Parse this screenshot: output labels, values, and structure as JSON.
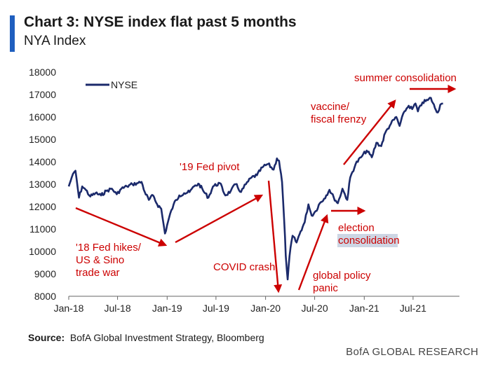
{
  "header": {
    "title": "Chart 3: NYSE index flat past 5 months",
    "subtitle": "NYA Index"
  },
  "footer": {
    "source_label": "Source:",
    "source_text": "BofA Global Investment Strategy, Bloomberg",
    "brand": "BofA GLOBAL RESEARCH"
  },
  "colors": {
    "accent": "#1f5fbf",
    "line": "#1b2a6b",
    "annotation": "#cc0000",
    "highlight": "#cdd6e4"
  },
  "chart_data": {
    "type": "line",
    "title": "Chart 3: NYSE index flat past 5 months",
    "subtitle": "NYA Index",
    "legend": {
      "entries": [
        "NYSE"
      ],
      "placement": "top-left"
    },
    "ylim": [
      8000,
      18000
    ],
    "yticks": [
      "18000",
      "17000",
      "16000",
      "15000",
      "14000",
      "13000",
      "12000",
      "11000",
      "10000",
      "9000",
      "8000"
    ],
    "xticks": [
      {
        "label": "Jan-18",
        "date": "2018-01-01"
      },
      {
        "label": "Jul-18",
        "date": "2018-07-01"
      },
      {
        "label": "Jan-19",
        "date": "2019-01-01"
      },
      {
        "label": "Jul-19",
        "date": "2019-07-01"
      },
      {
        "label": "Jan-20",
        "date": "2020-01-01"
      },
      {
        "label": "Jul-20",
        "date": "2020-07-01"
      },
      {
        "label": "Jan-21",
        "date": "2021-01-01"
      },
      {
        "label": "Jul-21",
        "date": "2021-07-01"
      }
    ],
    "xlim": [
      "2018-01-01",
      "2021-12-20"
    ],
    "grid": false,
    "series": [
      {
        "name": "NYSE",
        "points": [
          [
            "2018-01-01",
            12900
          ],
          [
            "2018-01-12",
            13300
          ],
          [
            "2018-01-26",
            13600
          ],
          [
            "2018-02-08",
            12400
          ],
          [
            "2018-02-20",
            12900
          ],
          [
            "2018-03-05",
            12750
          ],
          [
            "2018-03-22",
            12450
          ],
          [
            "2018-04-10",
            12600
          ],
          [
            "2018-05-01",
            12500
          ],
          [
            "2018-05-20",
            12700
          ],
          [
            "2018-06-10",
            12800
          ],
          [
            "2018-06-28",
            12550
          ],
          [
            "2018-07-15",
            12800
          ],
          [
            "2018-08-05",
            12900
          ],
          [
            "2018-08-25",
            13000
          ],
          [
            "2018-09-15",
            13050
          ],
          [
            "2018-09-28",
            13100
          ],
          [
            "2018-10-10",
            12650
          ],
          [
            "2018-10-25",
            12300
          ],
          [
            "2018-11-10",
            12500
          ],
          [
            "2018-11-25",
            12100
          ],
          [
            "2018-12-10",
            11900
          ],
          [
            "2018-12-24",
            10800
          ],
          [
            "2019-01-08",
            11500
          ],
          [
            "2019-01-25",
            12100
          ],
          [
            "2019-02-15",
            12500
          ],
          [
            "2019-03-05",
            12600
          ],
          [
            "2019-03-25",
            12650
          ],
          [
            "2019-04-15",
            12950
          ],
          [
            "2019-04-30",
            13000
          ],
          [
            "2019-05-15",
            12700
          ],
          [
            "2019-06-03",
            12400
          ],
          [
            "2019-06-20",
            12900
          ],
          [
            "2019-07-15",
            13050
          ],
          [
            "2019-08-05",
            12500
          ],
          [
            "2019-08-25",
            12700
          ],
          [
            "2019-09-12",
            13000
          ],
          [
            "2019-10-02",
            12650
          ],
          [
            "2019-10-20",
            13000
          ],
          [
            "2019-11-10",
            13300
          ],
          [
            "2019-11-30",
            13400
          ],
          [
            "2019-12-20",
            13750
          ],
          [
            "2020-01-10",
            13900
          ],
          [
            "2020-01-31",
            13650
          ],
          [
            "2020-02-12",
            14150
          ],
          [
            "2020-02-20",
            14050
          ],
          [
            "2020-03-02",
            13100
          ],
          [
            "2020-03-10",
            11400
          ],
          [
            "2020-03-16",
            9800
          ],
          [
            "2020-03-23",
            8750
          ],
          [
            "2020-03-30",
            9800
          ],
          [
            "2020-04-10",
            10700
          ],
          [
            "2020-04-25",
            10400
          ],
          [
            "2020-05-10",
            10900
          ],
          [
            "2020-05-25",
            11300
          ],
          [
            "2020-06-08",
            12100
          ],
          [
            "2020-06-20",
            11600
          ],
          [
            "2020-07-05",
            11800
          ],
          [
            "2020-07-20",
            12150
          ],
          [
            "2020-08-05",
            12350
          ],
          [
            "2020-08-25",
            12750
          ],
          [
            "2020-09-10",
            12400
          ],
          [
            "2020-09-25",
            12150
          ],
          [
            "2020-10-12",
            12800
          ],
          [
            "2020-10-30",
            12300
          ],
          [
            "2020-11-10",
            13300
          ],
          [
            "2020-11-30",
            13900
          ],
          [
            "2020-12-20",
            14200
          ],
          [
            "2021-01-10",
            14500
          ],
          [
            "2021-01-29",
            14200
          ],
          [
            "2021-02-15",
            14850
          ],
          [
            "2021-03-05",
            14700
          ],
          [
            "2021-03-20",
            15300
          ],
          [
            "2021-04-10",
            15700
          ],
          [
            "2021-04-30",
            16000
          ],
          [
            "2021-05-12",
            15600
          ],
          [
            "2021-05-30",
            16250
          ],
          [
            "2021-06-15",
            16500
          ],
          [
            "2021-06-28",
            16350
          ],
          [
            "2021-07-10",
            16600
          ],
          [
            "2021-07-19",
            16250
          ],
          [
            "2021-08-05",
            16650
          ],
          [
            "2021-08-25",
            16750
          ],
          [
            "2021-09-05",
            16850
          ],
          [
            "2021-09-20",
            16400
          ],
          [
            "2021-10-01",
            16200
          ],
          [
            "2021-10-10",
            16550
          ],
          [
            "2021-10-20",
            16600
          ]
        ]
      }
    ],
    "annotations": [
      {
        "id": "fed-hikes",
        "lines": [
          "'18 Fed hikes/",
          "US & Sino",
          "trade war"
        ]
      },
      {
        "id": "fed-pivot",
        "lines": [
          "'19 Fed pivot"
        ]
      },
      {
        "id": "covid",
        "lines": [
          "COVID crash"
        ]
      },
      {
        "id": "policy",
        "lines": [
          "global policy",
          "panic"
        ]
      },
      {
        "id": "election",
        "lines": [
          "election",
          "consolidation"
        ]
      },
      {
        "id": "vaccine",
        "lines": [
          "vaccine/",
          "fiscal frenzy"
        ]
      },
      {
        "id": "summer",
        "lines": [
          "summer consolidation"
        ]
      }
    ]
  }
}
